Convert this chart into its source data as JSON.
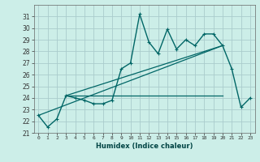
{
  "xlabel": "Humidex (Indice chaleur)",
  "bg_color": "#cceee8",
  "grid_color": "#aacccc",
  "line_color": "#006666",
  "x_data": [
    0,
    1,
    2,
    3,
    4,
    5,
    6,
    7,
    8,
    9,
    10,
    11,
    12,
    13,
    14,
    15,
    16,
    17,
    18,
    19,
    20,
    21,
    22,
    23
  ],
  "y_main": [
    22.5,
    21.5,
    22.2,
    24.2,
    24.0,
    23.8,
    23.5,
    23.5,
    23.8,
    26.5,
    27.0,
    31.2,
    28.8,
    27.8,
    29.9,
    28.2,
    29.0,
    28.5,
    29.5,
    29.5,
    28.5,
    26.5,
    23.2,
    24.0
  ],
  "flat_line_x": [
    3,
    20
  ],
  "flat_line_y": [
    24.2,
    24.2
  ],
  "trend1_x": [
    0,
    20
  ],
  "trend1_y": [
    22.5,
    28.5
  ],
  "trend2_x": [
    3,
    20
  ],
  "trend2_y": [
    24.2,
    28.5
  ],
  "ylim": [
    21,
    32
  ],
  "xlim": [
    -0.5,
    23.5
  ],
  "yticks": [
    21,
    22,
    23,
    24,
    25,
    26,
    27,
    28,
    29,
    30,
    31
  ],
  "xticks": [
    0,
    1,
    2,
    3,
    4,
    5,
    6,
    7,
    8,
    9,
    10,
    11,
    12,
    13,
    14,
    15,
    16,
    17,
    18,
    19,
    20,
    21,
    22,
    23
  ],
  "xtick_labels": [
    "0",
    "1",
    "2",
    "3",
    "4",
    "5",
    "6",
    "7",
    "8",
    "9",
    "10",
    "11",
    "12",
    "13",
    "14",
    "15",
    "16",
    "17",
    "18",
    "19",
    "20",
    "21",
    "22",
    "23"
  ]
}
